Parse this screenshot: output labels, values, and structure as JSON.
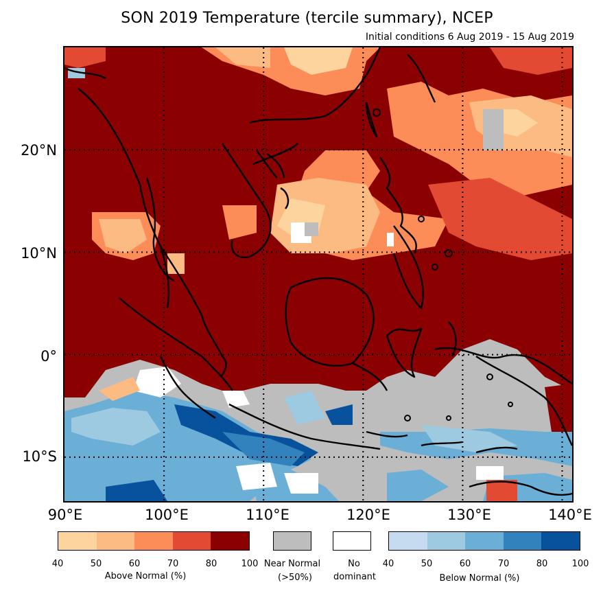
{
  "title": "SON 2019 Temperature (tercile summary), NCEP",
  "subtitle": "Initial conditions 6 Aug 2019 - 15 Aug 2019",
  "map": {
    "lon_range": [
      90,
      141
    ],
    "lat_range": [
      -14.3,
      30
    ],
    "gridlines_lon": [
      100,
      110,
      120,
      130,
      140
    ],
    "gridlines_lat": [
      20,
      10,
      0,
      -10
    ],
    "lat_labels": [
      "20°N",
      "10°N",
      "0°",
      "10°S"
    ],
    "lon_labels": [
      "90°E",
      "100°E",
      "110°E",
      "120°E",
      "130°E",
      "140°E"
    ]
  },
  "legend": {
    "above": {
      "title": "Above Normal (%)",
      "colors": [
        "#fdd49e",
        "#fdbb84",
        "#fc8d59",
        "#e34a33",
        "#8b0000"
      ],
      "ticks": [
        "40",
        "50",
        "60",
        "70",
        "80",
        "100"
      ]
    },
    "near": {
      "title_line1": "Near Normal",
      "title_line2": "(>50%)",
      "color": "#bdbdbd"
    },
    "none": {
      "title_line1": "No",
      "title_line2": "dominant",
      "color": "#ffffff"
    },
    "below": {
      "title": "Below Normal (%)",
      "colors": [
        "#c6dbef",
        "#9ecae1",
        "#6baed6",
        "#3182bd",
        "#08519c"
      ],
      "ticks": [
        "40",
        "50",
        "60",
        "70",
        "80",
        "100"
      ]
    }
  }
}
